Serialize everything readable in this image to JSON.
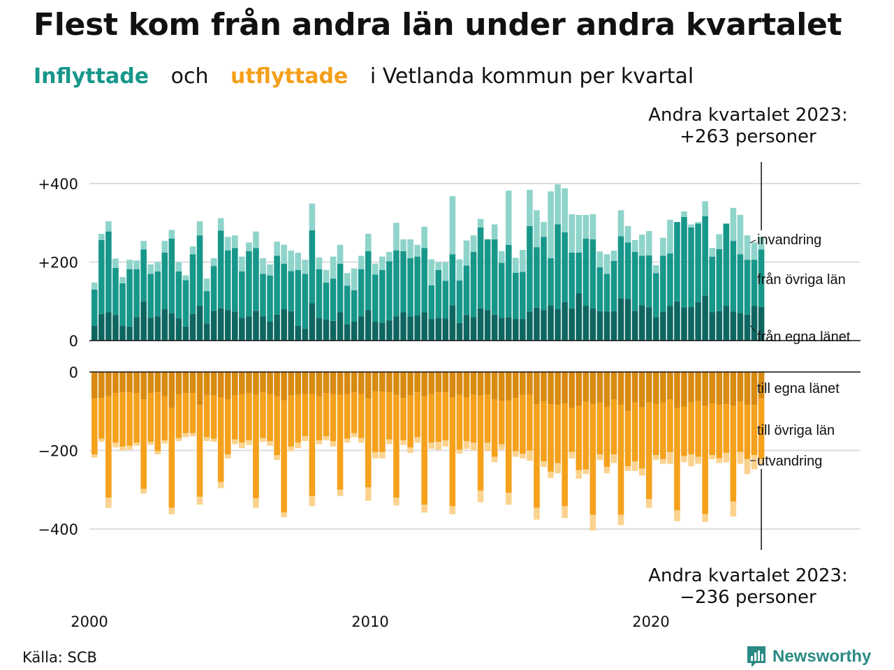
{
  "title": "Flest kom från andra län under andra kvartalet",
  "subtitle": {
    "part1": "Inflyttade",
    "part2": "och",
    "part3": "utflyttade",
    "part4": "i Vetlanda kommun per kvartal"
  },
  "annotations": {
    "top_line1": "Andra kvartalet 2023:",
    "top_line2": "+263 personer",
    "bottom_line1": "Andra kvartalet 2023:",
    "bottom_line2": "−236 personer"
  },
  "source": "Källa: SCB",
  "logo_text": "Newsworthy",
  "colors": {
    "in_own": "#0f6660",
    "in_other": "#17978a",
    "in_immig": "#8fd4cb",
    "out_own": "#d98a10",
    "out_other": "#f5a11c",
    "out_emig": "#fbd38f",
    "grid": "#dddddd"
  },
  "chart_data": [
    {
      "type": "bar",
      "stacked": true,
      "x_start": "2000 Q1",
      "x_end": "2023 Q2",
      "x_ticks": [
        "2000",
        "2010",
        "2020"
      ],
      "y_ticks": [
        "+400",
        "+200",
        "0"
      ],
      "ylim": [
        0,
        460
      ],
      "series": [
        {
          "name": "från egna länet",
          "values": [
            38,
            68,
            72,
            65,
            38,
            36,
            60,
            100,
            58,
            62,
            80,
            70,
            56,
            36,
            68,
            88,
            44,
            76,
            82,
            78,
            74,
            58,
            62,
            76,
            62,
            48,
            66,
            80,
            75,
            38,
            30,
            95,
            58,
            54,
            50,
            72,
            42,
            48,
            62,
            78,
            48,
            46,
            52,
            62,
            72,
            62,
            64,
            72,
            55,
            58,
            56,
            90,
            45,
            65,
            60,
            82,
            78,
            66,
            58,
            60,
            55,
            55,
            74,
            84,
            78,
            90,
            80,
            98,
            82,
            120,
            88,
            82,
            75,
            74,
            75,
            108,
            106,
            76,
            90,
            85,
            60,
            74,
            88,
            100,
            85,
            86,
            98,
            115,
            72,
            75,
            88,
            74,
            70,
            66,
            88,
            86
          ]
        },
        {
          "name": "från övriga län",
          "values": [
            92,
            188,
            206,
            120,
            108,
            146,
            122,
            132,
            112,
            114,
            144,
            190,
            120,
            118,
            152,
            180,
            82,
            114,
            198,
            152,
            162,
            118,
            166,
            160,
            108,
            118,
            150,
            116,
            102,
            142,
            140,
            186,
            124,
            94,
            108,
            124,
            98,
            80,
            120,
            150,
            120,
            134,
            150,
            168,
            156,
            148,
            150,
            164,
            86,
            122,
            96,
            130,
            108,
            126,
            166,
            206,
            180,
            192,
            140,
            184,
            118,
            120,
            218,
            154,
            186,
            120,
            216,
            178,
            142,
            104,
            172,
            176,
            112,
            96,
            128,
            158,
            144,
            150,
            126,
            132,
            112,
            142,
            134,
            202,
            230,
            202,
            200,
            202,
            142,
            158,
            210,
            180,
            150,
            140,
            118,
            146
          ]
        },
        {
          "name": "invandring",
          "values": [
            18,
            16,
            26,
            24,
            16,
            24,
            22,
            22,
            24,
            24,
            30,
            22,
            24,
            12,
            20,
            36,
            32,
            20,
            32,
            34,
            32,
            38,
            22,
            42,
            40,
            28,
            36,
            48,
            52,
            44,
            36,
            68,
            30,
            32,
            56,
            48,
            32,
            56,
            34,
            44,
            28,
            34,
            24,
            70,
            30,
            48,
            30,
            54,
            66,
            20,
            48,
            148,
            54,
            64,
            42,
            22,
            0,
            38,
            30,
            138,
            38,
            56,
            92,
            94,
            38,
            170,
            102,
            112,
            98,
            96,
            60,
            64,
            40,
            50,
            26,
            66,
            42,
            30,
            54,
            62,
            20,
            46,
            86,
            0,
            14,
            8,
            4,
            38,
            22,
            38,
            0,
            84,
            100,
            62,
            44,
            32
          ]
        }
      ]
    },
    {
      "type": "bar",
      "stacked": true,
      "x_start": "2000 Q1",
      "x_end": "2023 Q2",
      "y_ticks": [
        "0",
        "−200",
        "−400"
      ],
      "ylim": [
        -460,
        0
      ],
      "series": [
        {
          "name": "till egna länet",
          "values": [
            -68,
            -66,
            -62,
            -54,
            -52,
            -52,
            -54,
            -70,
            -54,
            -52,
            -62,
            -92,
            -58,
            -54,
            -54,
            -84,
            -58,
            -60,
            -64,
            -70,
            -60,
            -56,
            -54,
            -58,
            -52,
            -56,
            -62,
            -72,
            -60,
            -58,
            -56,
            -56,
            -62,
            -54,
            -56,
            -58,
            -56,
            -52,
            -56,
            -68,
            -50,
            -50,
            -52,
            -58,
            -66,
            -60,
            -52,
            -62,
            -56,
            -52,
            -52,
            -64,
            -58,
            -64,
            -58,
            -60,
            -58,
            -70,
            -74,
            -72,
            -66,
            -58,
            -58,
            -82,
            -76,
            -82,
            -84,
            -80,
            -92,
            -86,
            -76,
            -82,
            -78,
            -88,
            -70,
            -84,
            -100,
            -78,
            -90,
            -78,
            -82,
            -78,
            -70,
            -92,
            -88,
            -78,
            -74,
            -86,
            -80,
            -84,
            -82,
            -86,
            -76,
            -84,
            -84,
            -68
          ]
        },
        {
          "name": "till övriga län",
          "values": [
            -142,
            -104,
            -258,
            -126,
            -138,
            -136,
            -126,
            -228,
            -124,
            -150,
            -112,
            -254,
            -110,
            -102,
            -102,
            -234,
            -108,
            -110,
            -216,
            -140,
            -112,
            -124,
            -120,
            -264,
            -116,
            -120,
            -150,
            -286,
            -130,
            -122,
            -108,
            -260,
            -112,
            -110,
            -120,
            -242,
            -114,
            -104,
            -112,
            -226,
            -154,
            -154,
            -120,
            -262,
            -108,
            -132,
            -114,
            -276,
            -124,
            -126,
            -122,
            -278,
            -140,
            -112,
            -122,
            -242,
            -122,
            -146,
            -110,
            -236,
            -136,
            -150,
            -142,
            -264,
            -152,
            -172,
            -148,
            -262,
            -112,
            -164,
            -172,
            -282,
            -132,
            -154,
            -140,
            -280,
            -140,
            -150,
            -156,
            -246,
            -130,
            -144,
            -134,
            -260,
            -126,
            -132,
            -142,
            -276,
            -132,
            -136,
            -124,
            -244,
            -128,
            -138,
            -128,
            -154
          ]
        },
        {
          "name": "utvandring",
          "values": [
            -8,
            -8,
            -26,
            -12,
            -10,
            -10,
            -8,
            -12,
            -8,
            -8,
            -8,
            -16,
            -8,
            -10,
            -8,
            -20,
            -10,
            -8,
            -16,
            -10,
            -12,
            -14,
            -12,
            -24,
            -10,
            -12,
            -12,
            -12,
            -12,
            -14,
            -12,
            -26,
            -10,
            -10,
            -14,
            -16,
            -10,
            -10,
            -12,
            -34,
            -16,
            -16,
            -12,
            -20,
            -12,
            -14,
            -14,
            -20,
            -16,
            -20,
            -16,
            -20,
            -10,
            -20,
            -20,
            -30,
            -22,
            -14,
            -14,
            -30,
            -14,
            -12,
            -26,
            -30,
            -14,
            -16,
            -26,
            -30,
            -16,
            -22,
            -12,
            -40,
            -14,
            -16,
            -22,
            -26,
            -12,
            -24,
            -18,
            -22,
            -12,
            -12,
            -30,
            -28,
            -16,
            -30,
            -18,
            -20,
            -10,
            -12,
            -24,
            -38,
            -30,
            -38,
            -36,
            -14
          ]
        }
      ]
    }
  ]
}
